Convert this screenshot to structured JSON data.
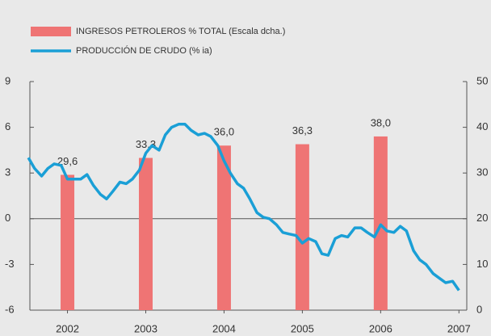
{
  "chart_data": {
    "type": "combo",
    "series": [
      {
        "name": "INGRESOS PETROLEROS % TOTAL (Escala dcha.)",
        "type": "bar",
        "axis": "y2",
        "color": "#ef7474",
        "x": [
          2002,
          2003,
          2004,
          2005,
          2006
        ],
        "values": [
          29.6,
          33.3,
          36.0,
          36.3,
          38.0
        ],
        "value_labels": [
          "29,6",
          "33,3",
          "36,0",
          "36,3",
          "38,0"
        ]
      },
      {
        "name": "PRODUCCIÓN DE CRUDO (% ia)",
        "type": "line",
        "color": "#1a9fd6",
        "x": [
          2001.5,
          2001.58,
          2001.67,
          2001.75,
          2001.83,
          2001.92,
          2002,
          2002.08,
          2002.17,
          2002.25,
          2002.33,
          2002.42,
          2002.5,
          2002.58,
          2002.67,
          2002.75,
          2002.83,
          2002.92,
          2003,
          2003.08,
          2003.17,
          2003.25,
          2003.33,
          2003.42,
          2003.5,
          2003.58,
          2003.67,
          2003.75,
          2003.83,
          2003.92,
          2004,
          2004.08,
          2004.17,
          2004.25,
          2004.33,
          2004.42,
          2004.5,
          2004.58,
          2004.67,
          2004.75,
          2004.83,
          2004.92,
          2005,
          2005.08,
          2005.17,
          2005.25,
          2005.33,
          2005.42,
          2005.5,
          2005.58,
          2005.67,
          2005.75,
          2005.83,
          2005.92,
          2006,
          2006.08,
          2006.17,
          2006.25,
          2006.33,
          2006.42,
          2006.5,
          2006.58,
          2006.67,
          2006.75,
          2006.83,
          2006.92,
          2007
        ],
        "values": [
          4.0,
          3.3,
          2.8,
          3.3,
          3.6,
          3.5,
          2.6,
          2.6,
          2.6,
          2.9,
          2.2,
          1.6,
          1.3,
          1.8,
          2.4,
          2.3,
          2.6,
          3.2,
          4.3,
          4.8,
          4.5,
          5.5,
          6.0,
          6.2,
          6.2,
          5.8,
          5.5,
          5.6,
          5.4,
          4.8,
          3.8,
          3.0,
          2.3,
          2.0,
          1.3,
          0.4,
          0.1,
          0.0,
          -0.4,
          -0.9,
          -1.0,
          -1.1,
          -1.6,
          -1.3,
          -1.5,
          -2.3,
          -2.4,
          -1.3,
          -1.1,
          -1.2,
          -0.6,
          -0.6,
          -0.9,
          -1.2,
          -0.4,
          -0.8,
          -0.9,
          -0.5,
          -0.8,
          -2.1,
          -2.7,
          -3.0,
          -3.6,
          -3.9,
          -4.2,
          -4.1,
          -4.7
        ]
      }
    ],
    "xlim": [
      2001.52,
      2007.1
    ],
    "xticks": [
      2002,
      2003,
      2004,
      2005,
      2006,
      2007
    ],
    "ylim": [
      -6,
      9
    ],
    "yticks": [
      -6,
      -3,
      0,
      3,
      6,
      9
    ],
    "y2lim": [
      0,
      50
    ],
    "y2ticks": [
      0,
      10,
      20,
      30,
      40,
      50
    ]
  }
}
